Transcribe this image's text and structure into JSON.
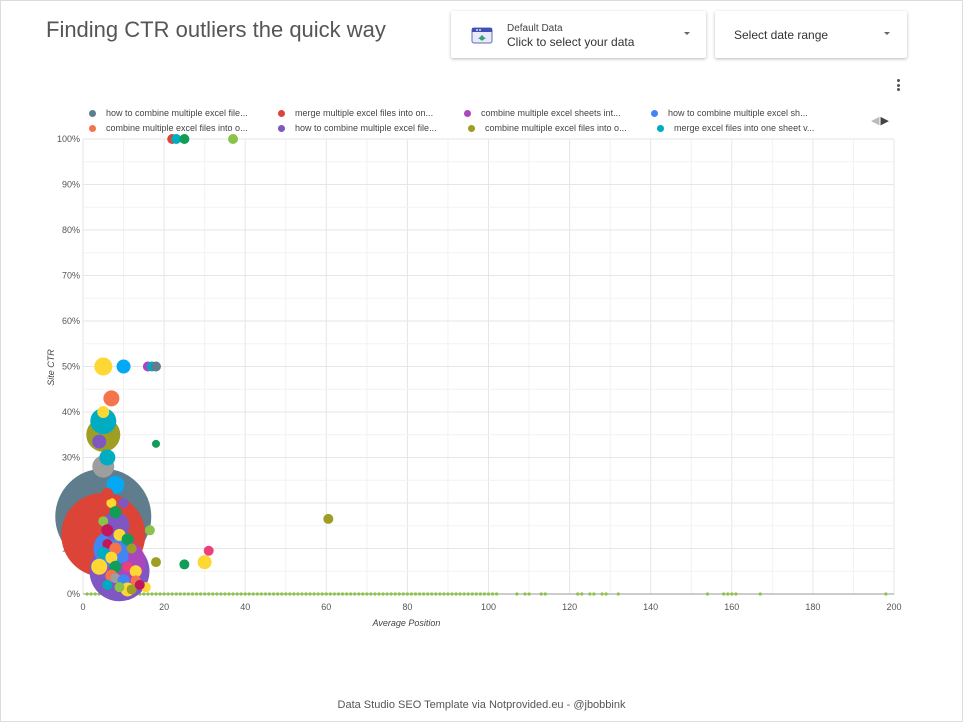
{
  "page": {
    "title": "Finding CTR outliers the quick way",
    "footer": "Data Studio SEO Template via Notprovided.eu - @jbobbink"
  },
  "data_control": {
    "label": "Default Data",
    "value": "Click to select your data",
    "icon": "data-source-icon"
  },
  "date_control": {
    "label": "Select date range"
  },
  "chart_data": {
    "type": "scatter",
    "xlabel": "Average Position",
    "ylabel": "Site CTR",
    "xlim": [
      0,
      200
    ],
    "ylim": [
      0,
      100
    ],
    "xticks": [
      "0",
      "20",
      "40",
      "60",
      "80",
      "100",
      "120",
      "140",
      "160",
      "180",
      "200"
    ],
    "yticks": [
      "0%",
      "10%",
      "20%",
      "30%",
      "40%",
      "50%",
      "60%",
      "70%",
      "80%",
      "90%",
      "100%"
    ],
    "grid": true,
    "legend_placement": "top",
    "legend": [
      {
        "name": "how to combine multiple excel file...",
        "color": "#5f7d8c"
      },
      {
        "name": "merge multiple excel files into on...",
        "color": "#db4437"
      },
      {
        "name": "combine multiple excel sheets int...",
        "color": "#ab47bc"
      },
      {
        "name": "how to combine multiple excel sh...",
        "color": "#4285f4"
      },
      {
        "name": "combine multiple excel files into o...",
        "color": "#f4744c"
      },
      {
        "name": "how to combine multiple excel file...",
        "color": "#7e57c2"
      },
      {
        "name": "combine multiple excel files into o...",
        "color": "#9e9d24"
      },
      {
        "name": "merge excel files into one sheet v...",
        "color": "#00acc1"
      }
    ],
    "points": [
      {
        "x": 5,
        "y": 17,
        "size": 48,
        "color": "#5f7d8c"
      },
      {
        "x": 5,
        "y": 13,
        "size": 42,
        "color": "#db4437"
      },
      {
        "x": 9,
        "y": 5,
        "size": 30,
        "color": "#7e57c2"
      },
      {
        "x": 10,
        "y": 7,
        "size": 22,
        "color": "#ab47bc"
      },
      {
        "x": 7,
        "y": 10,
        "size": 18,
        "color": "#4285f4"
      },
      {
        "x": 8,
        "y": 15,
        "size": 14,
        "color": "#7e57c2"
      },
      {
        "x": 5,
        "y": 35,
        "size": 17,
        "color": "#9e9d24"
      },
      {
        "x": 5,
        "y": 38,
        "size": 13,
        "color": "#00acc1"
      },
      {
        "x": 5,
        "y": 28,
        "size": 11,
        "color": "#9e9e9e"
      },
      {
        "x": 6,
        "y": 30,
        "size": 8,
        "color": "#00acc1"
      },
      {
        "x": 7,
        "y": 43,
        "size": 8,
        "color": "#f4744c"
      },
      {
        "x": 5,
        "y": 40,
        "size": 6,
        "color": "#fdd835"
      },
      {
        "x": 4,
        "y": 33.5,
        "size": 7,
        "color": "#7e57c2"
      },
      {
        "x": 5,
        "y": 50,
        "size": 9,
        "color": "#fdd835"
      },
      {
        "x": 10,
        "y": 50,
        "size": 7,
        "color": "#03a9f4"
      },
      {
        "x": 16,
        "y": 50,
        "size": 5,
        "color": "#ab47bc"
      },
      {
        "x": 17,
        "y": 50,
        "size": 5,
        "color": "#00acc1"
      },
      {
        "x": 18,
        "y": 50,
        "size": 5,
        "color": "#5f7d8c"
      },
      {
        "x": 22,
        "y": 100,
        "size": 5,
        "color": "#db4437"
      },
      {
        "x": 23,
        "y": 100,
        "size": 5,
        "color": "#00acc1"
      },
      {
        "x": 25,
        "y": 100,
        "size": 5,
        "color": "#0f9d58"
      },
      {
        "x": 37,
        "y": 100,
        "size": 5,
        "color": "#8bc34a"
      },
      {
        "x": 18,
        "y": 33,
        "size": 4,
        "color": "#0f9d58"
      },
      {
        "x": 60.5,
        "y": 16.5,
        "size": 5,
        "color": "#9e9d24"
      },
      {
        "x": 31,
        "y": 9.5,
        "size": 5,
        "color": "#ec407a"
      },
      {
        "x": 30,
        "y": 7,
        "size": 7,
        "color": "#fdd835"
      },
      {
        "x": 25,
        "y": 6.5,
        "size": 5,
        "color": "#0f9d58"
      },
      {
        "x": 18,
        "y": 7,
        "size": 5,
        "color": "#9e9d24"
      },
      {
        "x": 16.5,
        "y": 14,
        "size": 5,
        "color": "#8bc34a"
      },
      {
        "x": 15.5,
        "y": 1.5,
        "size": 5,
        "color": "#fdd835"
      },
      {
        "x": 8,
        "y": 24,
        "size": 9,
        "color": "#03a9f4"
      },
      {
        "x": 7,
        "y": 20,
        "size": 5,
        "color": "#fdd835"
      },
      {
        "x": 10,
        "y": 20,
        "size": 5,
        "color": "#7e57c2"
      },
      {
        "x": 6,
        "y": 22,
        "size": 6,
        "color": "#db4437"
      },
      {
        "x": 8,
        "y": 18,
        "size": 6,
        "color": "#0f9d58"
      },
      {
        "x": 5,
        "y": 16,
        "size": 5,
        "color": "#8bc34a"
      },
      {
        "x": 6,
        "y": 14,
        "size": 6,
        "color": "#c2185b"
      },
      {
        "x": 9,
        "y": 13,
        "size": 6,
        "color": "#fdd835"
      },
      {
        "x": 11,
        "y": 12,
        "size": 6,
        "color": "#0f9d58"
      },
      {
        "x": 6,
        "y": 11,
        "size": 5,
        "color": "#c2185b"
      },
      {
        "x": 8,
        "y": 10,
        "size": 6,
        "color": "#f4744c"
      },
      {
        "x": 12,
        "y": 10,
        "size": 5,
        "color": "#9e9d24"
      },
      {
        "x": 5,
        "y": 9,
        "size": 6,
        "color": "#00acc1"
      },
      {
        "x": 7,
        "y": 8,
        "size": 6,
        "color": "#fdd835"
      },
      {
        "x": 10,
        "y": 8,
        "size": 5,
        "color": "#4285f4"
      },
      {
        "x": 4,
        "y": 6,
        "size": 8,
        "color": "#fdd835"
      },
      {
        "x": 8,
        "y": 6,
        "size": 6,
        "color": "#0f9d58"
      },
      {
        "x": 11,
        "y": 6,
        "size": 5,
        "color": "#ec407a"
      },
      {
        "x": 13,
        "y": 5,
        "size": 6,
        "color": "#fdd835"
      },
      {
        "x": 7,
        "y": 4,
        "size": 6,
        "color": "#f4744c"
      },
      {
        "x": 8,
        "y": 3.5,
        "size": 5,
        "color": "#9e9e9e"
      },
      {
        "x": 10,
        "y": 3,
        "size": 6,
        "color": "#4285f4"
      },
      {
        "x": 13,
        "y": 3,
        "size": 5,
        "color": "#f4744c"
      },
      {
        "x": 11,
        "y": 1,
        "size": 7,
        "color": "#fdd835"
      },
      {
        "x": 12,
        "y": 1,
        "size": 5,
        "color": "#9e9d24"
      },
      {
        "x": 9,
        "y": 1.5,
        "size": 5,
        "color": "#8bc34a"
      },
      {
        "x": 6,
        "y": 2,
        "size": 5,
        "color": "#00acc1"
      },
      {
        "x": 14,
        "y": 2,
        "size": 5,
        "color": "#c2185b"
      }
    ],
    "zero_ctr_positions": [
      1,
      2,
      3,
      4,
      5,
      6,
      7,
      8,
      9,
      10,
      11,
      12,
      13,
      14,
      15,
      16,
      17,
      18,
      19,
      20,
      21,
      22,
      23,
      24,
      25,
      26,
      27,
      28,
      29,
      30,
      31,
      32,
      33,
      34,
      35,
      36,
      37,
      38,
      39,
      40,
      41,
      42,
      43,
      44,
      45,
      46,
      47,
      48,
      49,
      50,
      51,
      52,
      53,
      54,
      55,
      56,
      57,
      58,
      59,
      60,
      61,
      62,
      63,
      64,
      65,
      66,
      67,
      68,
      69,
      70,
      71,
      72,
      73,
      74,
      75,
      76,
      77,
      78,
      79,
      80,
      81,
      82,
      83,
      84,
      85,
      86,
      87,
      88,
      89,
      90,
      91,
      92,
      93,
      94,
      95,
      96,
      97,
      98,
      99,
      100,
      101,
      102,
      107,
      109,
      110,
      113,
      114,
      122,
      123,
      125,
      126,
      128,
      129,
      132,
      154,
      158,
      159,
      160,
      161,
      167,
      198
    ],
    "zero_ctr_color": "#8bc34a"
  }
}
